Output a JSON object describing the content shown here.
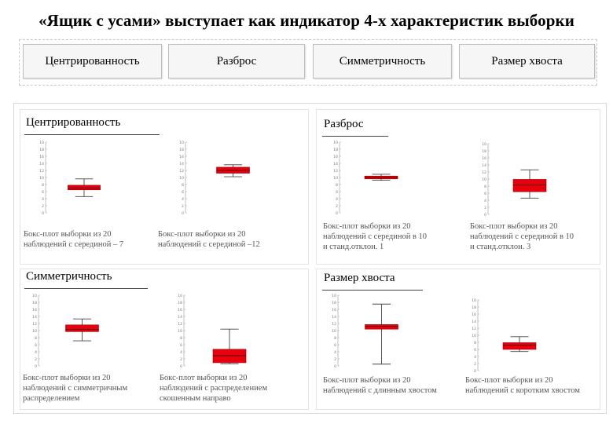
{
  "title": "«Ящик с усами» выступает как индикатор 4-х характеристик выборки",
  "tabs": [
    "Центрированность",
    "Разброс",
    "Симметричность",
    "Размер хвоста"
  ],
  "sections": {
    "center": "Центрированность",
    "spread": "Разброс",
    "symmetry": "Симметричность",
    "tail": "Размер хвоста"
  },
  "axis_ticks": [
    "10",
    "18",
    "16",
    "14",
    "12",
    "10",
    "8",
    "6",
    "4",
    "2",
    "0"
  ],
  "box_color": "#e8000f",
  "plots": [
    {
      "id": "center-1",
      "whisker_low": 4.6,
      "q1": 6.5,
      "median": 7,
      "q3": 7.8,
      "whisker_high": 9.6
    },
    {
      "id": "center-2",
      "whisker_low": 10.2,
      "q1": 11.2,
      "median": 12,
      "q3": 12.9,
      "whisker_high": 13.6
    },
    {
      "id": "spread-1",
      "whisker_low": 9.2,
      "q1": 9.6,
      "median": 10,
      "q3": 10.4,
      "whisker_high": 10.9
    },
    {
      "id": "spread-2",
      "whisker_low": 4.6,
      "q1": 6.4,
      "median": 8.3,
      "q3": 9.9,
      "whisker_high": 12.6
    },
    {
      "id": "sym-1",
      "whisker_low": 7.1,
      "q1": 9.7,
      "median": 10.3,
      "q3": 11.6,
      "whisker_high": 13.3
    },
    {
      "id": "sym-2",
      "whisker_low": 0.6,
      "q1": 0.9,
      "median": 2.9,
      "q3": 4.7,
      "whisker_high": 10.4
    },
    {
      "id": "tail-1",
      "whisker_low": 0.5,
      "q1": 10.4,
      "median": 11.2,
      "q3": 11.7,
      "whisker_high": 17.5
    },
    {
      "id": "tail-2",
      "whisker_low": 5.4,
      "q1": 6.0,
      "median": 7.2,
      "q3": 7.9,
      "whisker_high": 9.6
    }
  ],
  "captions": {
    "c1": [
      "Бокс-плот выборки из 20",
      "наблюдений с серединой – 7"
    ],
    "c2": [
      "Бокс-плот выборки из 20",
      "наблюдений с серединой –12"
    ],
    "c3": [
      "Бокс-плот выборки из 20",
      "наблюдений с серединой  в 10",
      "и станд.отклон. 1"
    ],
    "c4": [
      "Бокс-плот выборки из 20",
      "наблюдений с серединой  в 10",
      "и станд.отклон. 3"
    ],
    "c5": [
      "Бокс-плот выборки из 20",
      "наблюдений с симметричным",
      "распределением"
    ],
    "c6": [
      "Бокс-плот выборки из 20",
      "наблюдений с распределением",
      "скошенным направо"
    ],
    "c7": [
      "Бокс-плот выборки из 20",
      "наблюдений с длинным хвостом"
    ],
    "c8": [
      "Бокс-плот выборки из 20",
      "наблюдений с коротким хвостом"
    ]
  }
}
